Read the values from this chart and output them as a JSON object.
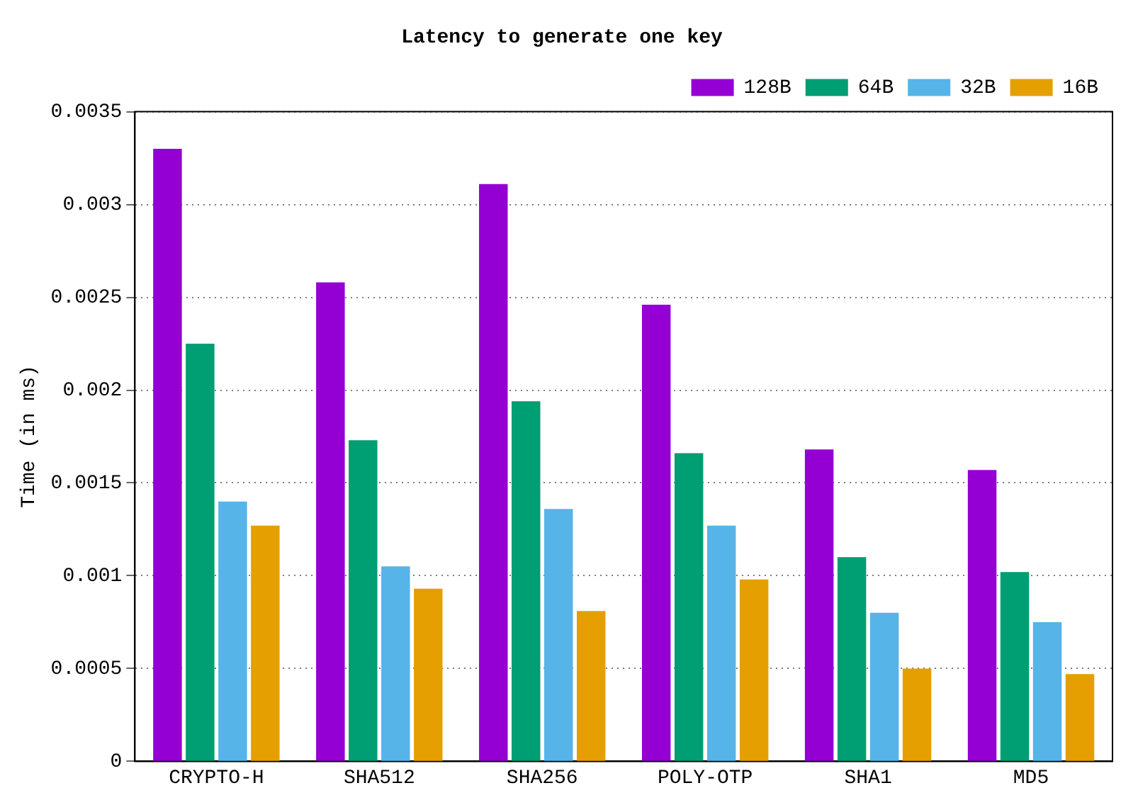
{
  "chart_data": {
    "type": "bar",
    "title": "Latency to generate one key",
    "ylabel": "Time (in ms)",
    "categories": [
      "CRYPTO-H",
      "SHA512",
      "SHA256",
      "POLY-OTP",
      "SHA1",
      "MD5"
    ],
    "series": [
      {
        "name": "128B",
        "color": "#9400d3",
        "values": [
          0.0033,
          0.00258,
          0.00311,
          0.00246,
          0.00168,
          0.00157
        ]
      },
      {
        "name": "64B",
        "color": "#009e73",
        "values": [
          0.00225,
          0.00173,
          0.00194,
          0.00166,
          0.0011,
          0.00102
        ]
      },
      {
        "name": "32B",
        "color": "#56b4e9",
        "values": [
          0.0014,
          0.00105,
          0.00136,
          0.00127,
          0.0008,
          0.00075
        ]
      },
      {
        "name": "16B",
        "color": "#e69f00",
        "values": [
          0.00127,
          0.00093,
          0.00081,
          0.00098,
          0.0005,
          0.00047
        ]
      }
    ],
    "ylim": [
      0,
      0.0035
    ],
    "yticks": [
      0,
      0.0005,
      0.001,
      0.0015,
      0.002,
      0.0025,
      0.003,
      0.0035
    ],
    "grid": "y",
    "legend": "top right"
  }
}
